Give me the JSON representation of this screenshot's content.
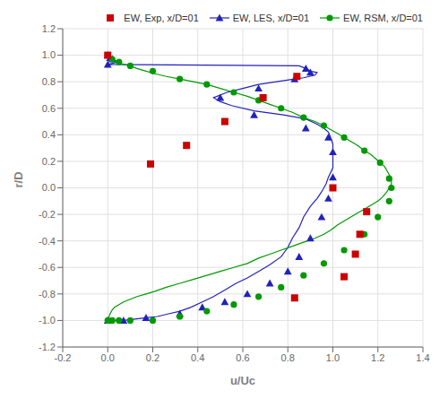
{
  "chart_data": {
    "type": "line",
    "title": "",
    "xlabel": "u/Uc",
    "ylabel": "r/D",
    "xlim": [
      -0.2,
      1.4
    ],
    "ylim": [
      -1.2,
      1.2
    ],
    "xticks": [
      -0.2,
      {
        "value": 0.0,
        "label": "0.0"
      },
      0.2,
      0.4,
      0.6,
      0.8,
      {
        "value": 1.0,
        "label": "1.0"
      },
      1.2,
      1.4
    ],
    "yticks": [
      -1.2,
      {
        "value": -1.0,
        "label": "-1.0"
      },
      -0.8,
      -0.6,
      -0.4,
      -0.2,
      {
        "value": 0.0,
        "label": "0.0"
      },
      0.2,
      0.4,
      0.6,
      0.8,
      {
        "value": 1.0,
        "label": "1.0"
      },
      1.2
    ],
    "grid": true,
    "legend": "upper right",
    "series": [
      {
        "name": "EW, Exp, x/D=01",
        "type": "scatter",
        "marker": "square",
        "color": "#cc0000",
        "x": [
          0.0,
          0.84,
          0.69,
          0.52,
          0.35,
          0.19,
          1.0,
          1.15,
          1.12,
          1.1,
          1.05,
          0.83
        ],
        "values": [
          1.0,
          0.84,
          0.68,
          0.5,
          0.32,
          0.18,
          0.0,
          -0.18,
          -0.35,
          -0.5,
          -0.67,
          -0.83
        ]
      },
      {
        "name": "EW, LES, x/D=01",
        "type": "line",
        "marker": "triangle",
        "color": "#2222bb",
        "x": [
          0.0,
          0.01,
          0.02,
          0.03,
          0.05,
          0.0,
          0.85,
          0.88,
          0.9,
          0.93,
          0.92,
          0.87,
          0.83,
          0.75,
          0.67,
          0.6,
          0.53,
          0.47,
          0.5,
          0.55,
          0.65,
          0.78,
          0.88,
          0.93,
          0.96,
          0.98,
          0.99,
          1.0,
          1.0,
          1.0,
          1.0,
          0.98,
          0.97,
          0.95,
          0.93,
          0.9,
          0.87,
          0.85,
          0.82,
          0.8,
          0.77,
          0.72,
          0.67,
          0.62,
          0.57,
          0.52,
          0.47,
          0.42,
          0.37,
          0.32,
          0.27,
          0.22,
          0.17,
          0.12,
          0.07,
          0.03,
          0.01,
          0.0
        ],
        "values": [
          1.0,
          0.98,
          0.97,
          0.96,
          0.95,
          0.93,
          0.92,
          0.9,
          0.88,
          0.87,
          0.85,
          0.83,
          0.82,
          0.8,
          0.78,
          0.75,
          0.72,
          0.68,
          0.65,
          0.62,
          0.58,
          0.55,
          0.52,
          0.48,
          0.45,
          0.42,
          0.38,
          0.33,
          0.27,
          0.22,
          0.15,
          0.08,
          0.03,
          -0.03,
          -0.08,
          -0.14,
          -0.22,
          -0.3,
          -0.38,
          -0.45,
          -0.52,
          -0.58,
          -0.63,
          -0.68,
          -0.72,
          -0.77,
          -0.82,
          -0.86,
          -0.9,
          -0.93,
          -0.95,
          -0.97,
          -0.98,
          -0.99,
          -1.0,
          -1.0,
          -1.0,
          -1.0
        ],
        "marker_x": [
          0.0,
          0.01,
          0.02,
          0.0,
          0.88,
          0.9,
          0.83,
          0.67,
          0.5,
          0.65,
          0.88,
          0.98,
          1.0,
          1.0,
          0.98,
          0.95,
          0.9,
          0.85,
          0.8,
          0.72,
          0.62,
          0.52,
          0.42,
          0.32,
          0.17,
          0.07,
          0.0
        ],
        "marker_values": [
          1.0,
          0.98,
          0.97,
          0.93,
          0.9,
          0.87,
          0.82,
          0.75,
          0.68,
          0.55,
          0.45,
          0.38,
          0.27,
          0.08,
          -0.08,
          -0.22,
          -0.38,
          -0.52,
          -0.63,
          -0.72,
          -0.8,
          -0.86,
          -0.9,
          -0.95,
          -0.98,
          -1.0,
          -1.0
        ]
      },
      {
        "name": "EW, RSM, x/D=01",
        "type": "line",
        "marker": "circle",
        "color": "#009900",
        "x": [
          0.0,
          0.01,
          0.02,
          0.03,
          0.05,
          0.07,
          0.1,
          0.13,
          0.17,
          0.21,
          0.26,
          0.32,
          0.38,
          0.44,
          0.5,
          0.56,
          0.62,
          0.67,
          0.72,
          0.77,
          0.82,
          0.87,
          0.92,
          0.96,
          0.99,
          1.02,
          1.05,
          1.08,
          1.11,
          1.14,
          1.17,
          1.19,
          1.21,
          1.23,
          1.24,
          1.25,
          1.26,
          1.26,
          1.25,
          1.24,
          1.22,
          1.2,
          1.17,
          1.14,
          1.11,
          1.08,
          1.05,
          1.02,
          0.99,
          0.96,
          0.92,
          0.87,
          0.82,
          0.77,
          0.72,
          0.67,
          0.62,
          0.56,
          0.5,
          0.44,
          0.38,
          0.32,
          0.26,
          0.21,
          0.17,
          0.13,
          0.1,
          0.07,
          0.05,
          0.03,
          0.02,
          0.01,
          0.0
        ],
        "values": [
          1.0,
          0.98,
          0.97,
          0.96,
          0.95,
          0.93,
          0.92,
          0.9,
          0.88,
          0.86,
          0.84,
          0.82,
          0.8,
          0.78,
          0.75,
          0.72,
          0.69,
          0.66,
          0.63,
          0.6,
          0.57,
          0.53,
          0.5,
          0.47,
          0.44,
          0.41,
          0.38,
          0.35,
          0.32,
          0.28,
          0.25,
          0.22,
          0.19,
          0.16,
          0.13,
          0.1,
          0.07,
          0.03,
          0.0,
          -0.03,
          -0.07,
          -0.1,
          -0.13,
          -0.16,
          -0.19,
          -0.22,
          -0.25,
          -0.28,
          -0.32,
          -0.35,
          -0.38,
          -0.41,
          -0.44,
          -0.47,
          -0.5,
          -0.53,
          -0.57,
          -0.6,
          -0.63,
          -0.66,
          -0.69,
          -0.72,
          -0.75,
          -0.78,
          -0.8,
          -0.82,
          -0.84,
          -0.86,
          -0.88,
          -0.9,
          -0.92,
          -0.95,
          -1.0
        ],
        "marker_x": [
          0.0,
          0.02,
          0.05,
          0.1,
          0.2,
          0.32,
          0.44,
          0.56,
          0.67,
          0.77,
          0.87,
          0.96,
          1.05,
          1.14,
          1.21,
          1.25,
          1.26,
          1.25,
          1.2,
          1.14,
          1.05,
          0.96,
          0.87,
          0.77,
          0.67,
          0.56,
          0.44,
          0.32,
          0.2,
          0.1,
          0.05,
          0.02,
          0.0
        ],
        "marker_values": [
          1.0,
          0.97,
          0.95,
          0.92,
          0.88,
          0.82,
          0.78,
          0.72,
          0.66,
          0.6,
          0.53,
          0.47,
          0.38,
          0.28,
          0.19,
          0.07,
          0.0,
          -0.1,
          -0.22,
          -0.35,
          -0.47,
          -0.57,
          -0.66,
          -0.75,
          -0.82,
          -0.88,
          -0.93,
          -0.97,
          -1.0,
          -1.0,
          -1.0,
          -1.0,
          -1.0
        ]
      }
    ]
  }
}
